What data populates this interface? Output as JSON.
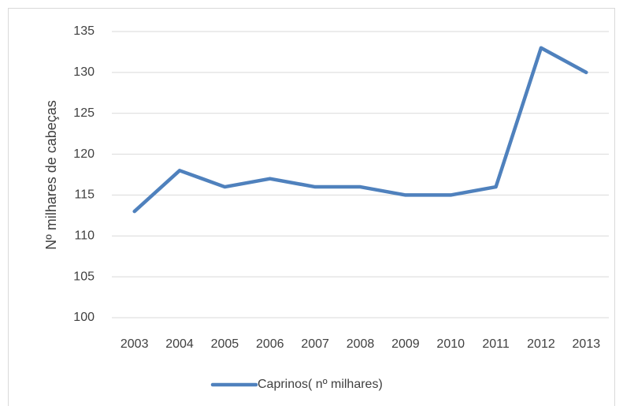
{
  "chart_data": {
    "type": "line",
    "y_label": "Nº milhares de cabeças",
    "categories": [
      "2003",
      "2004",
      "2005",
      "2006",
      "2007",
      "2008",
      "2009",
      "2010",
      "2011",
      "2012",
      "2013"
    ],
    "series": [
      {
        "name": "Caprinos( nº milhares)",
        "color": "#4f81bd",
        "values": [
          113,
          118,
          116,
          117,
          116,
          116,
          115,
          115,
          116,
          133,
          130
        ]
      }
    ],
    "ylim": [
      100,
      135
    ],
    "yticks": [
      100,
      105,
      110,
      115,
      120,
      125,
      130,
      135
    ],
    "grid": true,
    "legend": "bottom"
  }
}
